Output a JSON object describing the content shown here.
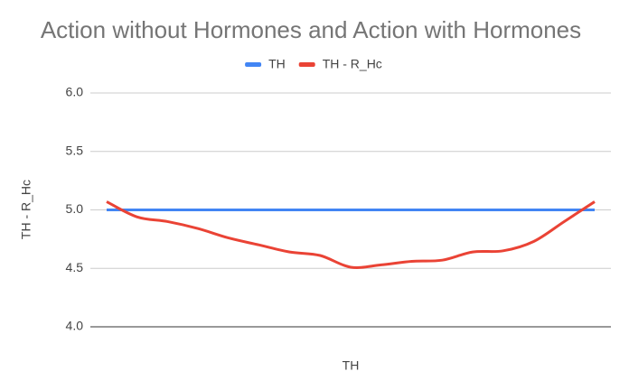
{
  "chart_data": {
    "type": "line",
    "title": "Action without Hormones and Action with Hormones",
    "x_label": "TH",
    "y_label": "TH - R_Hc",
    "categories": [
      null,
      null,
      null,
      null,
      null,
      null,
      null,
      null,
      null,
      null,
      null,
      null,
      null,
      null,
      null,
      null,
      null
    ],
    "series": [
      {
        "name": "TH",
        "color": "#4285f4",
        "values": [
          5.0,
          5.0,
          5.0,
          5.0,
          5.0,
          5.0,
          5.0,
          5.0,
          5.0,
          5.0,
          5.0,
          5.0,
          5.0,
          5.0,
          5.0,
          5.0,
          5.0
        ]
      },
      {
        "name": "TH - R_Hc",
        "color": "#ea4335",
        "values": [
          5.07,
          4.94,
          4.9,
          4.84,
          4.76,
          4.7,
          4.64,
          4.61,
          4.51,
          4.53,
          4.56,
          4.57,
          4.64,
          4.65,
          4.73,
          4.9,
          5.07
        ]
      }
    ],
    "ylim": [
      4,
      6
    ],
    "yticks": [
      {
        "value": 4,
        "label": "4.0"
      },
      {
        "value": 4.5,
        "label": "4.5"
      },
      {
        "value": 5,
        "label": "5.0"
      },
      {
        "value": 5.5,
        "label": "5.5"
      },
      {
        "value": 6,
        "label": "6.0"
      }
    ],
    "grid": true,
    "legend": "top"
  }
}
